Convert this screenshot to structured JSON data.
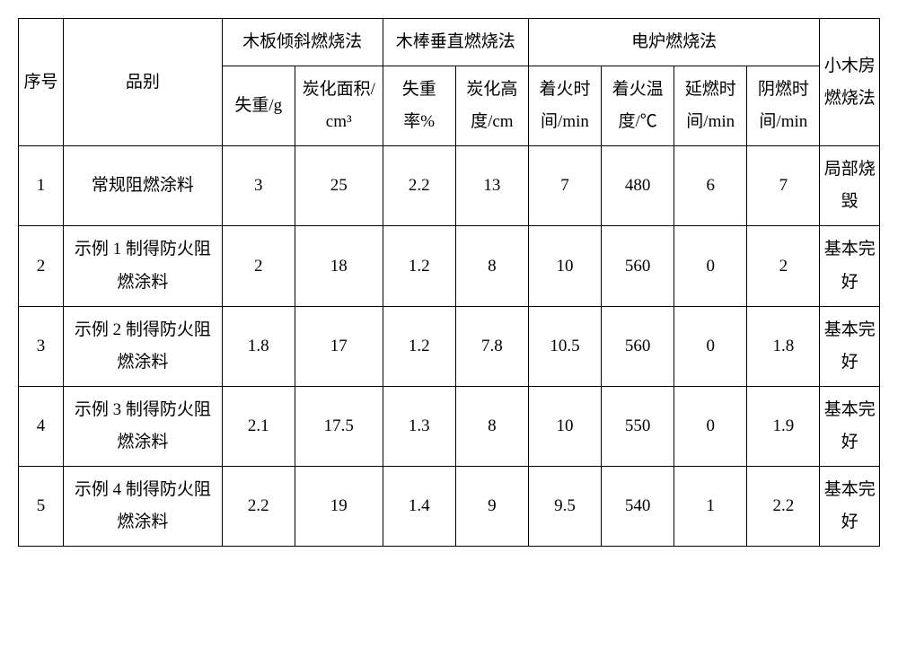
{
  "header": {
    "seq": "序号",
    "name": "品别",
    "group1": "木板倾斜燃烧法",
    "group2": "木棒垂直燃烧法",
    "group3": "电炉燃烧法",
    "last": "小木房燃烧法",
    "g1c1": "失重/g",
    "g1c2": "炭化面积/cm³",
    "g2c1": "失重率%",
    "g2c2": "炭化高度/cm",
    "g3c1": "着火时间/min",
    "g3c2": "着火温度/℃",
    "g3c3": "延燃时间/min",
    "g3c4": "阴燃时间/min"
  },
  "rows": [
    {
      "seq": "1",
      "name": "常规阻燃涂料",
      "g1c1": "3",
      "g1c2": "25",
      "g2c1": "2.2",
      "g2c2": "13",
      "g3c1": "7",
      "g3c2": "480",
      "g3c3": "6",
      "g3c4": "7",
      "last": "局部烧毁"
    },
    {
      "seq": "2",
      "name": "示例 1 制得防火阻燃涂料",
      "g1c1": "2",
      "g1c2": "18",
      "g2c1": "1.2",
      "g2c2": "8",
      "g3c1": "10",
      "g3c2": "560",
      "g3c3": "0",
      "g3c4": "2",
      "last": "基本完好"
    },
    {
      "seq": "3",
      "name": "示例 2 制得防火阻燃涂料",
      "g1c1": "1.8",
      "g1c2": "17",
      "g2c1": "1.2",
      "g2c2": "7.8",
      "g3c1": "10.5",
      "g3c2": "560",
      "g3c3": "0",
      "g3c4": "1.8",
      "last": "基本完好"
    },
    {
      "seq": "4",
      "name": "示例 3 制得防火阻燃涂料",
      "g1c1": "2.1",
      "g1c2": "17.5",
      "g2c1": "1.3",
      "g2c2": "8",
      "g3c1": "10",
      "g3c2": "550",
      "g3c3": "0",
      "g3c4": "1.9",
      "last": "基本完好"
    },
    {
      "seq": "5",
      "name": "示例 4 制得防火阻燃涂料",
      "g1c1": "2.2",
      "g1c2": "19",
      "g2c1": "1.4",
      "g2c2": "9",
      "g3c1": "9.5",
      "g3c2": "540",
      "g3c3": "1",
      "g3c4": "2.2",
      "last": "基本完好"
    }
  ]
}
